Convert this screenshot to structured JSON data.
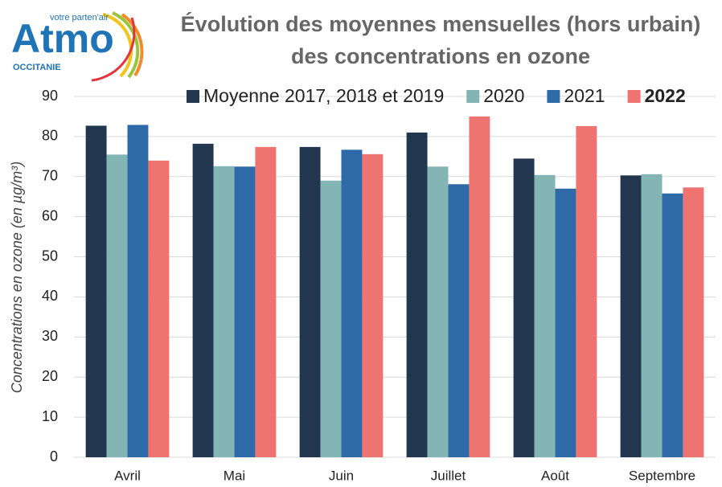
{
  "logo": {
    "name": "Atmo",
    "tagline": "votre parten'air",
    "region": "OCCITANIE"
  },
  "chart_data": {
    "type": "bar",
    "title": [
      "Évolution des moyennes mensuelles (hors urbain)",
      "des concentrations en ozone"
    ],
    "y_label": "Concentrations en ozone (en µg/m³)",
    "categories": [
      "Avril",
      "Mai",
      "Juin",
      "Juillet",
      "Août",
      "Septembre"
    ],
    "series": [
      {
        "name": "Moyenne 2017, 2018 et 2019",
        "color": "#22364f",
        "values": [
          82.7,
          78.2,
          77.4,
          81.0,
          74.5,
          70.3
        ]
      },
      {
        "name": "2020",
        "color": "#82b5b4",
        "values": [
          75.5,
          72.6,
          69.0,
          72.5,
          70.4,
          70.6
        ]
      },
      {
        "name": "2021",
        "color": "#2e6aa8",
        "values": [
          82.9,
          72.5,
          76.7,
          68.1,
          67.0,
          65.8
        ]
      },
      {
        "name": "2022",
        "color": "#ef7370",
        "bold": true,
        "values": [
          74.0,
          77.4,
          75.6,
          85.0,
          82.6,
          67.3
        ]
      }
    ],
    "ylim": [
      0,
      90
    ],
    "yticks": [
      0,
      10,
      20,
      30,
      40,
      50,
      60,
      70,
      80,
      90
    ],
    "grid": true,
    "legend": "top"
  }
}
